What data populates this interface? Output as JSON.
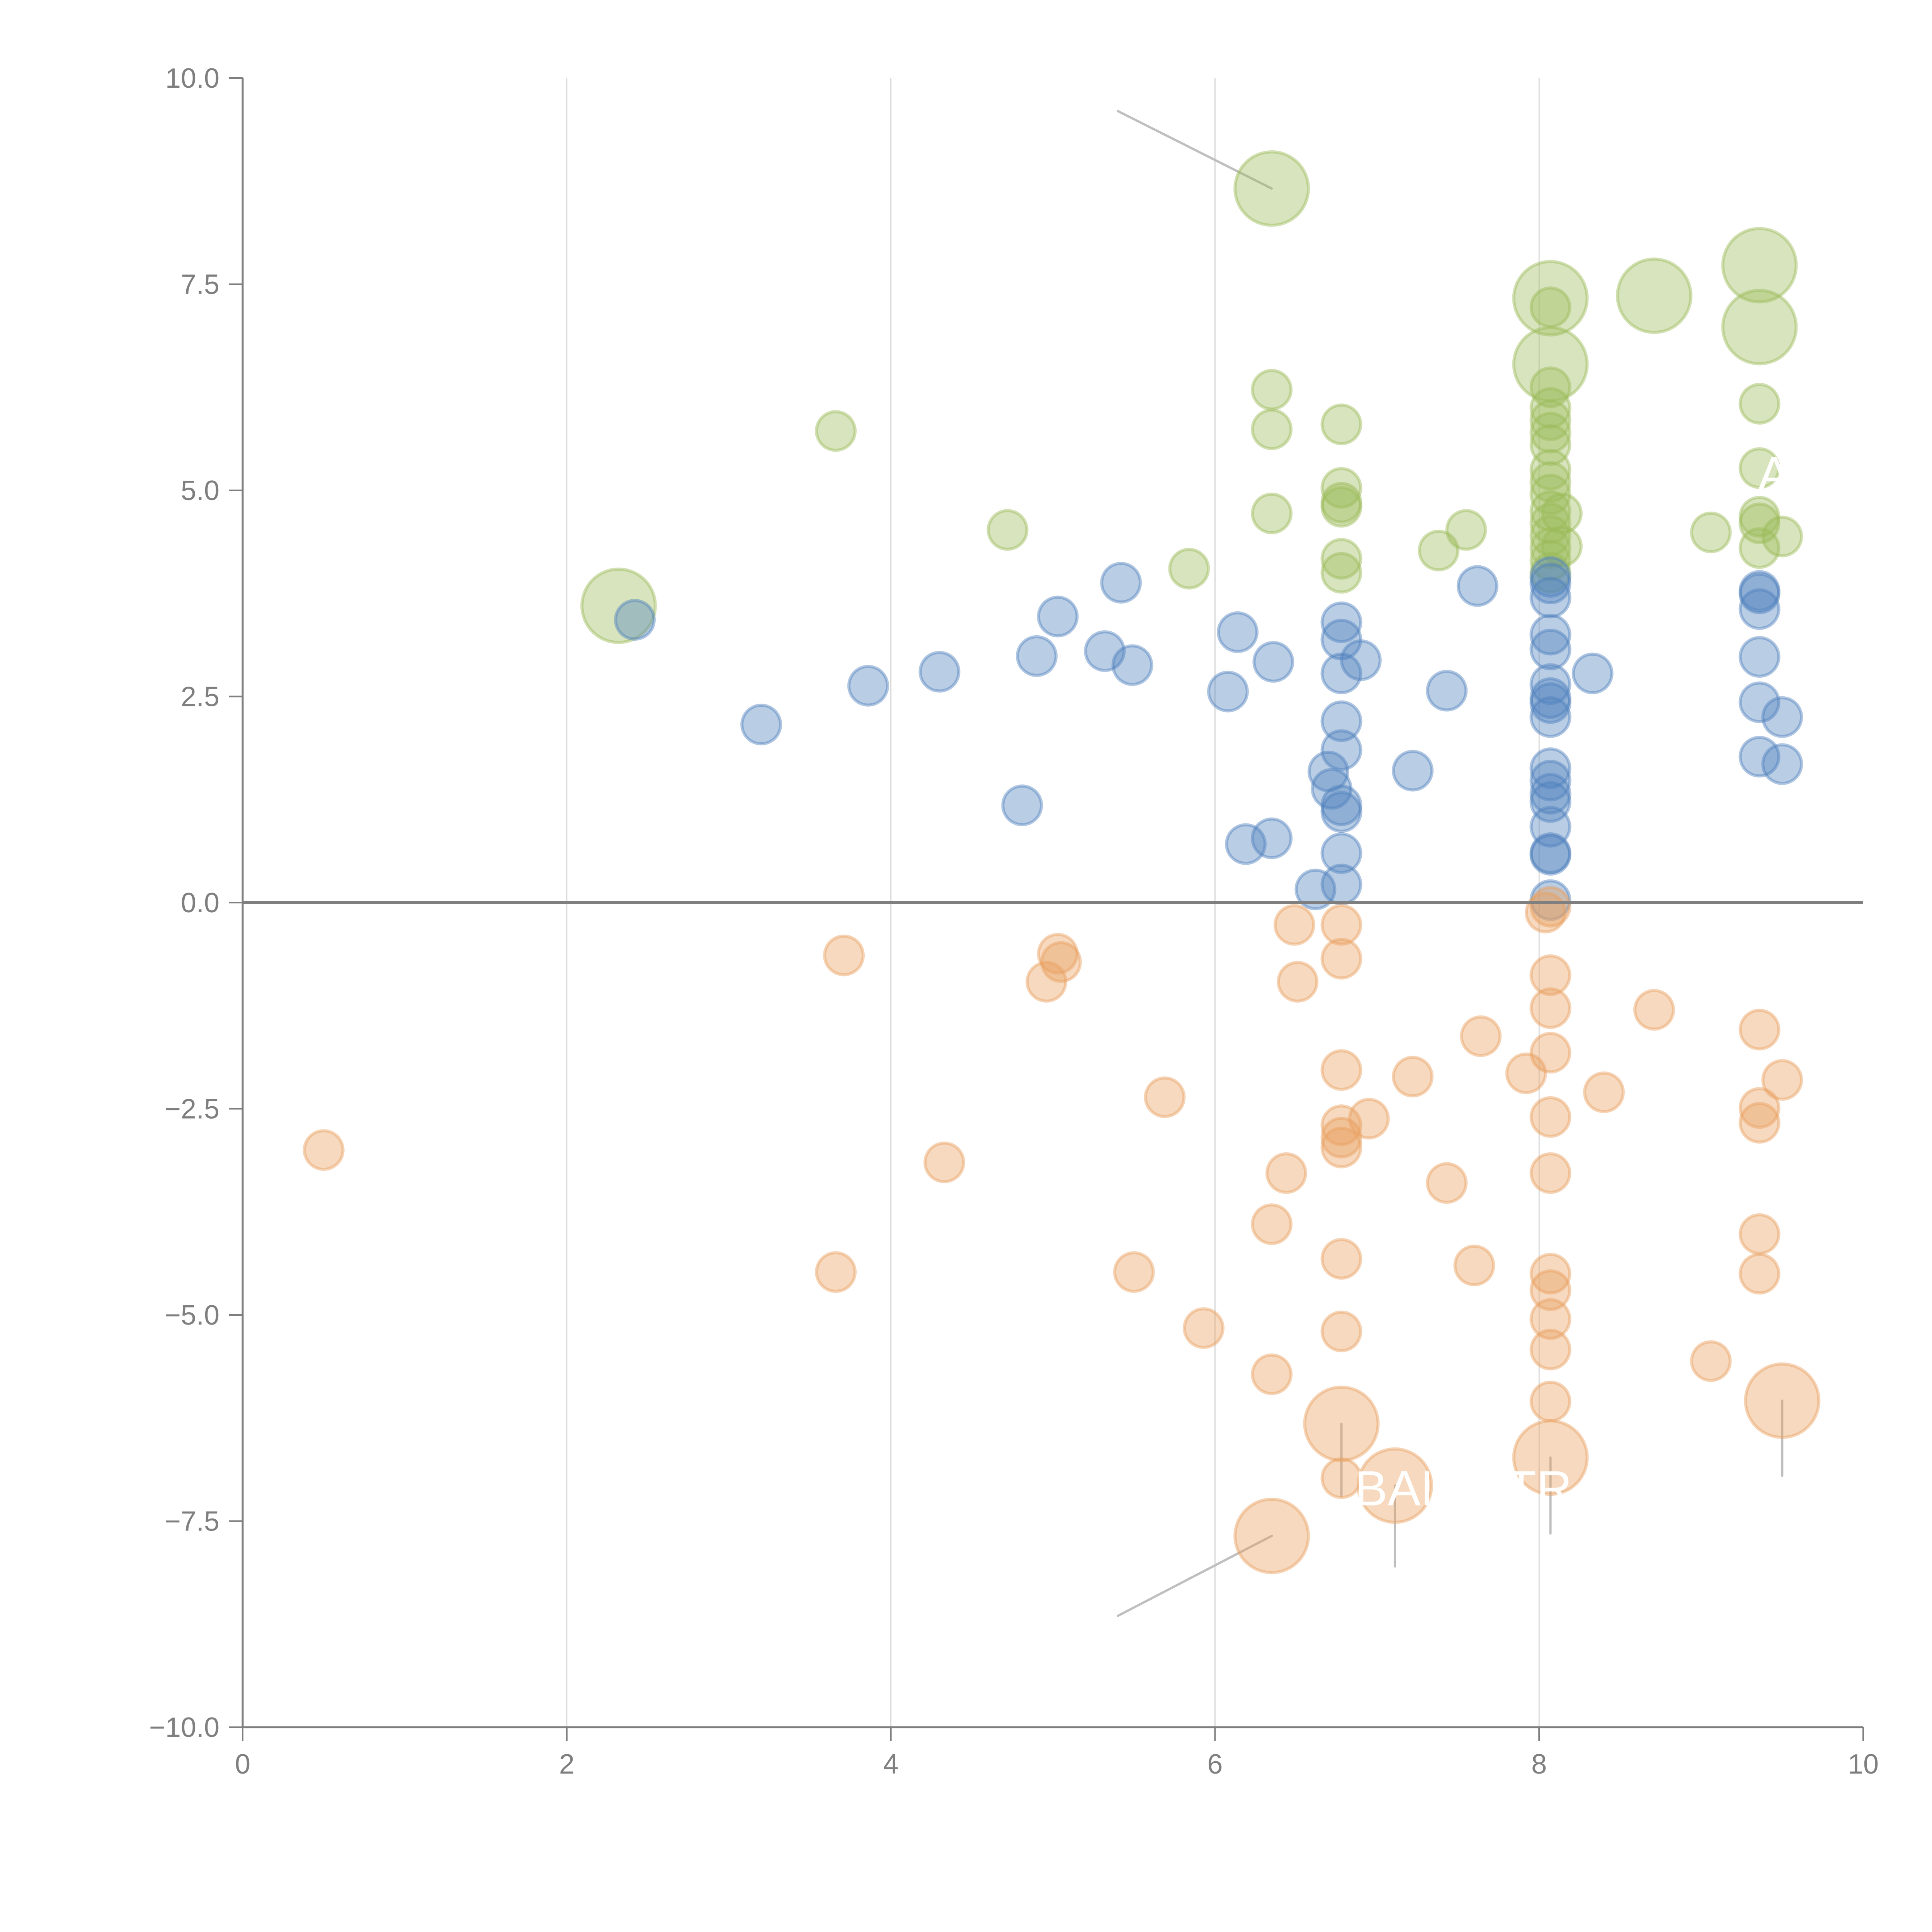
{
  "chart_data": {
    "type": "scatter",
    "title": "",
    "xlabel": "",
    "ylabel": "",
    "xlim": [
      0,
      10
    ],
    "ylim": [
      -10,
      10
    ],
    "x_ticks": [
      "0",
      "2",
      "4",
      "6",
      "8",
      "10"
    ],
    "y_ticks": [
      "10.0",
      "7.5",
      "5.0",
      "2.5",
      "0.0",
      "−2.5",
      "−5.0",
      "−7.5",
      "−10.0"
    ],
    "x_tick_values": [
      0,
      2,
      4,
      6,
      8,
      10
    ],
    "y_tick_values": [
      10,
      7.5,
      5,
      2.5,
      0,
      -2.5,
      -5,
      -7.5,
      -10
    ],
    "grid": "vertical",
    "zero_line": true,
    "colors": {
      "green": "#9bbb59",
      "blue": "#4f81bd",
      "orange": "#e8a060",
      "axis": "#7f7f7f",
      "grid": "#d9d9d9",
      "leader": "#bfbfbf"
    },
    "series": [
      {
        "name": "green",
        "color": "#9bbb59",
        "points": [
          [
            2.32,
            3.6,
            2
          ],
          [
            3.66,
            5.72,
            1
          ],
          [
            4.72,
            4.52,
            1
          ],
          [
            5.84,
            4.05,
            1
          ],
          [
            6.35,
            6.22,
            1
          ],
          [
            6.35,
            5.74,
            1
          ],
          [
            6.35,
            4.72,
            1
          ],
          [
            6.35,
            8.66,
            2
          ],
          [
            6.78,
            5.8,
            1
          ],
          [
            6.78,
            5.03,
            1
          ],
          [
            6.78,
            4.85,
            1
          ],
          [
            6.78,
            4.8,
            1
          ],
          [
            6.78,
            4.17,
            1
          ],
          [
            6.78,
            4.0,
            1
          ],
          [
            7.38,
            4.27,
            1
          ],
          [
            7.55,
            4.52,
            1
          ],
          [
            8.07,
            7.33,
            2
          ],
          [
            8.07,
            7.22,
            1
          ],
          [
            8.07,
            6.53,
            2
          ],
          [
            8.07,
            6.25,
            1
          ],
          [
            8.07,
            6.0,
            1
          ],
          [
            8.07,
            5.85,
            1
          ],
          [
            8.07,
            5.7,
            1
          ],
          [
            8.07,
            5.55,
            1
          ],
          [
            8.07,
            5.25,
            1
          ],
          [
            8.07,
            5.1,
            1
          ],
          [
            8.07,
            4.95,
            1
          ],
          [
            8.07,
            4.75,
            1
          ],
          [
            8.07,
            4.6,
            1
          ],
          [
            8.07,
            4.45,
            1
          ],
          [
            8.07,
            4.3,
            1
          ],
          [
            8.07,
            4.15,
            1
          ],
          [
            8.07,
            4.0,
            1
          ],
          [
            8.14,
            4.72,
            1
          ],
          [
            8.14,
            4.32,
            1
          ],
          [
            8.71,
            7.36,
            2
          ],
          [
            9.06,
            4.49,
            1
          ],
          [
            9.36,
            7.73,
            2
          ],
          [
            9.36,
            6.98,
            2
          ],
          [
            9.36,
            6.05,
            1
          ],
          [
            9.36,
            5.27,
            1
          ],
          [
            9.36,
            4.68,
            1
          ],
          [
            9.36,
            4.6,
            1
          ],
          [
            9.36,
            4.3,
            1
          ],
          [
            9.5,
            4.44,
            1
          ]
        ]
      },
      {
        "name": "blue",
        "color": "#4f81bd",
        "points": [
          [
            2.42,
            3.43,
            1
          ],
          [
            3.2,
            2.16,
            1
          ],
          [
            3.86,
            2.63,
            1
          ],
          [
            4.3,
            2.8,
            1
          ],
          [
            4.81,
            1.18,
            1
          ],
          [
            4.9,
            2.99,
            1
          ],
          [
            5.03,
            3.47,
            1
          ],
          [
            5.32,
            3.05,
            1
          ],
          [
            5.42,
            3.88,
            1
          ],
          [
            5.49,
            2.88,
            1
          ],
          [
            6.08,
            2.56,
            1
          ],
          [
            6.14,
            3.28,
            1
          ],
          [
            6.19,
            0.71,
            1
          ],
          [
            6.35,
            0.78,
            1
          ],
          [
            6.36,
            2.92,
            1
          ],
          [
            6.62,
            0.16,
            1
          ],
          [
            6.7,
            1.59,
            1
          ],
          [
            6.72,
            1.38,
            1
          ],
          [
            6.78,
            3.4,
            1
          ],
          [
            6.78,
            3.19,
            1
          ],
          [
            6.78,
            2.78,
            1
          ],
          [
            6.78,
            2.2,
            1
          ],
          [
            6.78,
            1.85,
            1
          ],
          [
            6.78,
            1.18,
            1
          ],
          [
            6.78,
            1.1,
            1
          ],
          [
            6.78,
            0.6,
            1
          ],
          [
            6.78,
            0.22,
            1
          ],
          [
            6.9,
            2.94,
            1
          ],
          [
            7.22,
            1.6,
            1
          ],
          [
            7.43,
            2.57,
            1
          ],
          [
            7.62,
            3.84,
            1
          ],
          [
            8.07,
            3.95,
            1
          ],
          [
            8.07,
            3.87,
            1
          ],
          [
            8.07,
            3.7,
            1
          ],
          [
            8.07,
            3.25,
            1
          ],
          [
            8.07,
            3.07,
            1
          ],
          [
            8.07,
            2.65,
            1
          ],
          [
            8.07,
            2.48,
            1
          ],
          [
            8.07,
            2.42,
            1
          ],
          [
            8.07,
            2.25,
            1
          ],
          [
            8.07,
            1.63,
            1
          ],
          [
            8.07,
            1.48,
            1
          ],
          [
            8.07,
            1.32,
            1
          ],
          [
            8.07,
            1.22,
            1
          ],
          [
            8.07,
            0.92,
            1
          ],
          [
            8.07,
            0.6,
            1
          ],
          [
            8.07,
            0.58,
            1
          ],
          [
            8.07,
            0.03,
            1
          ],
          [
            8.33,
            2.78,
            1
          ],
          [
            9.36,
            3.78,
            1
          ],
          [
            9.36,
            3.75,
            1
          ],
          [
            9.36,
            3.56,
            1
          ],
          [
            9.36,
            2.98,
            1
          ],
          [
            9.36,
            2.43,
            1
          ],
          [
            9.36,
            1.77,
            1
          ],
          [
            9.5,
            2.25,
            1
          ],
          [
            9.5,
            1.68,
            1
          ]
        ]
      },
      {
        "name": "orange",
        "color": "#e8a060",
        "points": [
          [
            0.5,
            -3.0,
            1
          ],
          [
            3.66,
            -4.48,
            1
          ],
          [
            3.71,
            -0.64,
            1
          ],
          [
            4.33,
            -3.15,
            1
          ],
          [
            4.96,
            -0.96,
            1
          ],
          [
            5.03,
            -0.62,
            1
          ],
          [
            5.05,
            -0.72,
            1
          ],
          [
            5.5,
            -4.48,
            1
          ],
          [
            5.69,
            -2.36,
            1
          ],
          [
            5.93,
            -5.16,
            1
          ],
          [
            6.35,
            -3.9,
            1
          ],
          [
            6.35,
            -5.72,
            1
          ],
          [
            6.35,
            -7.68,
            2
          ],
          [
            6.44,
            -3.28,
            1
          ],
          [
            6.49,
            -0.27,
            1
          ],
          [
            6.51,
            -0.96,
            1
          ],
          [
            6.78,
            -0.27,
            1
          ],
          [
            6.78,
            -0.68,
            1
          ],
          [
            6.78,
            -2.03,
            1
          ],
          [
            6.78,
            -2.7,
            1
          ],
          [
            6.78,
            -2.85,
            1
          ],
          [
            6.78,
            -2.97,
            1
          ],
          [
            6.78,
            -4.32,
            1
          ],
          [
            6.78,
            -5.2,
            1
          ],
          [
            6.78,
            -6.98,
            1
          ],
          [
            6.78,
            -6.32,
            2
          ],
          [
            6.95,
            -2.62,
            1
          ],
          [
            7.11,
            -7.07,
            2
          ],
          [
            7.22,
            -2.11,
            1
          ],
          [
            7.43,
            -3.4,
            1
          ],
          [
            7.6,
            -4.4,
            1
          ],
          [
            7.64,
            -1.62,
            1
          ],
          [
            7.92,
            -2.07,
            1
          ],
          [
            8.04,
            -0.12,
            1
          ],
          [
            8.07,
            -0.05,
            1
          ],
          [
            8.07,
            -0.88,
            1
          ],
          [
            8.07,
            -1.28,
            1
          ],
          [
            8.07,
            -1.82,
            1
          ],
          [
            8.07,
            -2.6,
            1
          ],
          [
            8.07,
            -3.28,
            1
          ],
          [
            8.07,
            -4.5,
            1
          ],
          [
            8.07,
            -4.7,
            1
          ],
          [
            8.07,
            -5.05,
            1
          ],
          [
            8.07,
            -5.42,
            1
          ],
          [
            8.07,
            -6.05,
            1
          ],
          [
            8.07,
            -6.73,
            2
          ],
          [
            8.4,
            -2.3,
            1
          ],
          [
            8.71,
            -1.3,
            1
          ],
          [
            9.06,
            -5.56,
            1
          ],
          [
            9.36,
            -1.54,
            1
          ],
          [
            9.36,
            -2.49,
            1
          ],
          [
            9.36,
            -2.67,
            1
          ],
          [
            9.36,
            -4.02,
            1
          ],
          [
            9.36,
            -4.5,
            1
          ],
          [
            9.5,
            -2.15,
            1
          ],
          [
            9.5,
            -6.04,
            2
          ]
        ]
      }
    ],
    "annotations": [
      {
        "text": "BAL",
        "x": 7.15,
        "y": -7.1
      },
      {
        "text": "TR",
        "x": 8.0,
        "y": -7.1
      },
      {
        "text": "A",
        "x": 9.45,
        "y": 5.2
      }
    ],
    "leader_lines": [
      {
        "from": [
          6.35,
          8.66
        ],
        "to": [
          5.4,
          9.6
        ]
      },
      {
        "from": [
          6.35,
          -7.68
        ],
        "to": [
          5.4,
          -8.65
        ]
      },
      {
        "from": [
          6.78,
          -6.32
        ],
        "to": [
          6.78,
          -7.2
        ]
      },
      {
        "from": [
          7.11,
          -7.07
        ],
        "to": [
          7.11,
          -8.05
        ]
      },
      {
        "from": [
          8.07,
          -6.73
        ],
        "to": [
          8.07,
          -7.65
        ]
      },
      {
        "from": [
          9.5,
          -6.04
        ],
        "to": [
          9.5,
          -6.95
        ]
      }
    ]
  }
}
